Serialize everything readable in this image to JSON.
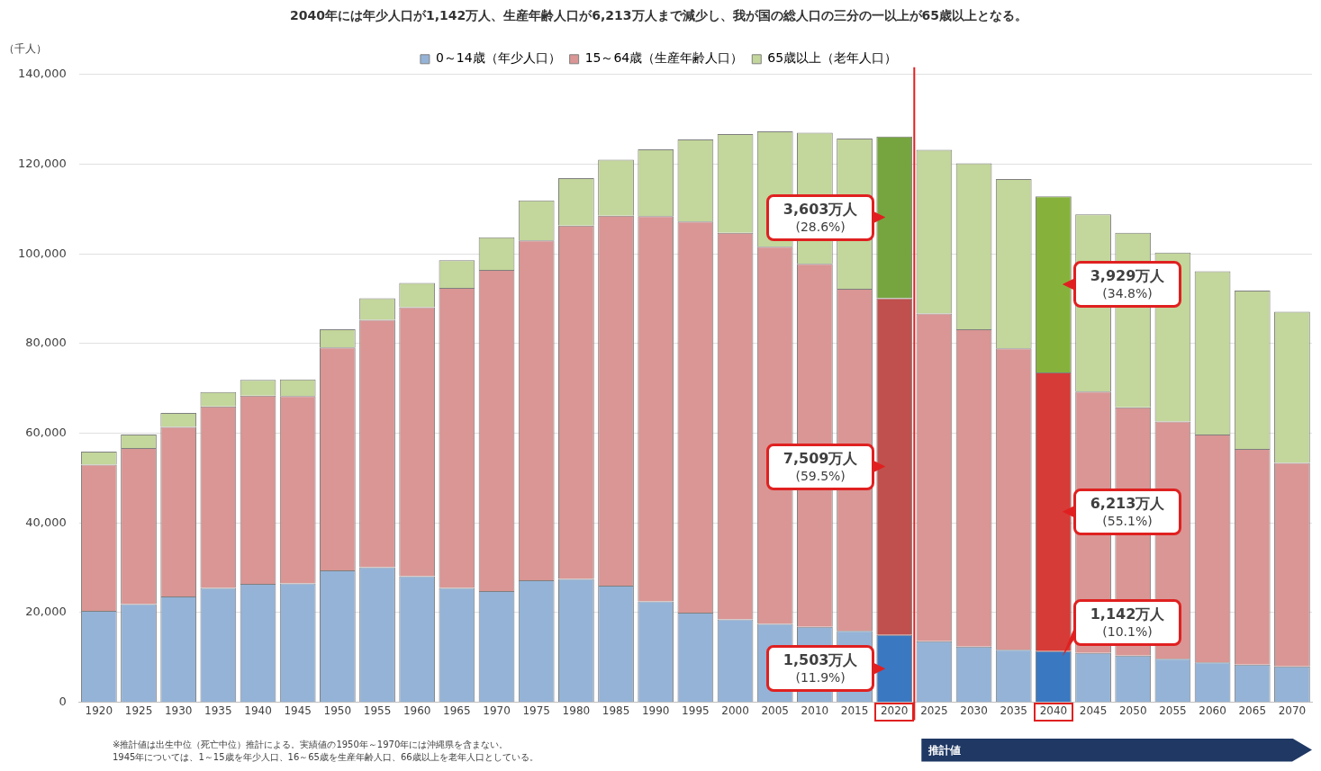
{
  "chart_data": {
    "type": "bar",
    "stacked": true,
    "title": "2040年には年少人口が1,142万人、生産年齢人口が6,213万人まで減少し、我が国の総人口の三分の一以上が65歳以上となる。",
    "ylabel": "（千人）",
    "categories": [
      "1920",
      "1925",
      "1930",
      "1935",
      "1940",
      "1945",
      "1950",
      "1955",
      "1960",
      "1965",
      "1970",
      "1975",
      "1980",
      "1985",
      "1990",
      "1995",
      "2000",
      "2005",
      "2010",
      "2015",
      "2020",
      "2025",
      "2030",
      "2035",
      "2040",
      "2045",
      "2050",
      "2055",
      "2060",
      "2065",
      "2070"
    ],
    "series": [
      {
        "name": "0～14歳（年少人口）",
        "color": "#95b3d7",
        "colors": [
          "#95b3d7",
          "#95b3d7",
          "#95b3d7",
          "#95b3d7",
          "#95b3d7",
          "#95b3d7",
          "#95b3d7",
          "#95b3d7",
          "#95b3d7",
          "#95b3d7",
          "#95b3d7",
          "#95b3d7",
          "#95b3d7",
          "#95b3d7",
          "#95b3d7",
          "#95b3d7",
          "#95b3d7",
          "#95b3d7",
          "#95b3d7",
          "#95b3d7",
          "#3a78c2",
          "#95b3d7",
          "#95b3d7",
          "#95b3d7",
          "#3a78c2",
          "#95b3d7",
          "#95b3d7",
          "#95b3d7",
          "#95b3d7",
          "#95b3d7",
          "#95b3d7"
        ],
        "values": [
          20400,
          21900,
          23600,
          25500,
          26400,
          26500,
          29400,
          30100,
          28100,
          25500,
          24800,
          27200,
          27500,
          26000,
          22500,
          20000,
          18500,
          17500,
          16800,
          15900,
          15030,
          13600,
          12400,
          11700,
          11420,
          11000,
          10400,
          9700,
          8900,
          8400,
          8000
        ]
      },
      {
        "name": "15～64歳（生産年齢人口）",
        "color": "#d99694",
        "colors": [
          "#d99694",
          "#d99694",
          "#d99694",
          "#d99694",
          "#d99694",
          "#d99694",
          "#d99694",
          "#d99694",
          "#d99694",
          "#d99694",
          "#d99694",
          "#d99694",
          "#d99694",
          "#d99694",
          "#d99694",
          "#d99694",
          "#d99694",
          "#d99694",
          "#d99694",
          "#d99694",
          "#c0504d",
          "#d99694",
          "#d99694",
          "#d99694",
          "#d63b37",
          "#d99694",
          "#d99694",
          "#d99694",
          "#d99694",
          "#d99694",
          "#d99694"
        ],
        "values": [
          32600,
          34800,
          37800,
          40500,
          42000,
          41800,
          49700,
          55200,
          60000,
          66900,
          71600,
          75800,
          78800,
          82500,
          85900,
          87200,
          86200,
          84100,
          81000,
          76300,
          75090,
          73100,
          70800,
          67200,
          62130,
          58300,
          55400,
          52900,
          50800,
          48100,
          45400
        ]
      },
      {
        "name": "65歳以上（老年人口）",
        "color": "#c3d69b",
        "colors": [
          "#c3d69b",
          "#c3d69b",
          "#c3d69b",
          "#c3d69b",
          "#c3d69b",
          "#c3d69b",
          "#c3d69b",
          "#c3d69b",
          "#c3d69b",
          "#c3d69b",
          "#c3d69b",
          "#c3d69b",
          "#c3d69b",
          "#c3d69b",
          "#c3d69b",
          "#c3d69b",
          "#c3d69b",
          "#c3d69b",
          "#c3d69b",
          "#c3d69b",
          "#76a540",
          "#c3d69b",
          "#c3d69b",
          "#c3d69b",
          "#86b23c",
          "#c3d69b",
          "#c3d69b",
          "#c3d69b",
          "#c3d69b",
          "#c3d69b",
          "#c3d69b"
        ],
        "values": [
          2900,
          3000,
          3100,
          3200,
          3500,
          3700,
          4100,
          4800,
          5400,
          6200,
          7300,
          8900,
          10600,
          12500,
          14900,
          18300,
          22000,
          25700,
          29200,
          33500,
          36030,
          36500,
          37000,
          37800,
          39290,
          39500,
          38900,
          37700,
          36400,
          35300,
          33700
        ]
      }
    ],
    "ylim": [
      0,
      140000
    ],
    "yticks": [
      {
        "value": 0,
        "label": "0"
      },
      {
        "value": 20000,
        "label": "20,000"
      },
      {
        "value": 40000,
        "label": "40,000"
      },
      {
        "value": 60000,
        "label": "60,000"
      },
      {
        "value": 80000,
        "label": "80,000"
      },
      {
        "value": 100000,
        "label": "100,000"
      },
      {
        "value": 120000,
        "label": "120,000"
      },
      {
        "value": 140000,
        "label": "140,000"
      }
    ],
    "grid": "y",
    "legend": "top",
    "ref_lines": [
      {
        "axis": "x",
        "value": "2020",
        "color": "#e02020"
      }
    ],
    "annotations": [
      "3,603万人\n(28.6%)",
      "7,509万人\n(59.5%)",
      "1,503万人\n(11.9%)",
      "3,929万人\n(34.8%)",
      "6,213万人\n(55.1%)",
      "1,142万人\n(10.1%)",
      "※推計値は出生中位（死亡中位）推計による。実績値の1950年～1970年には沖縄県を含まない。",
      "1945年については、1～15歳を年少人口、16～65歳を生産年齢人口、66歳以上を老年人口としている。",
      "推計値"
    ]
  }
}
